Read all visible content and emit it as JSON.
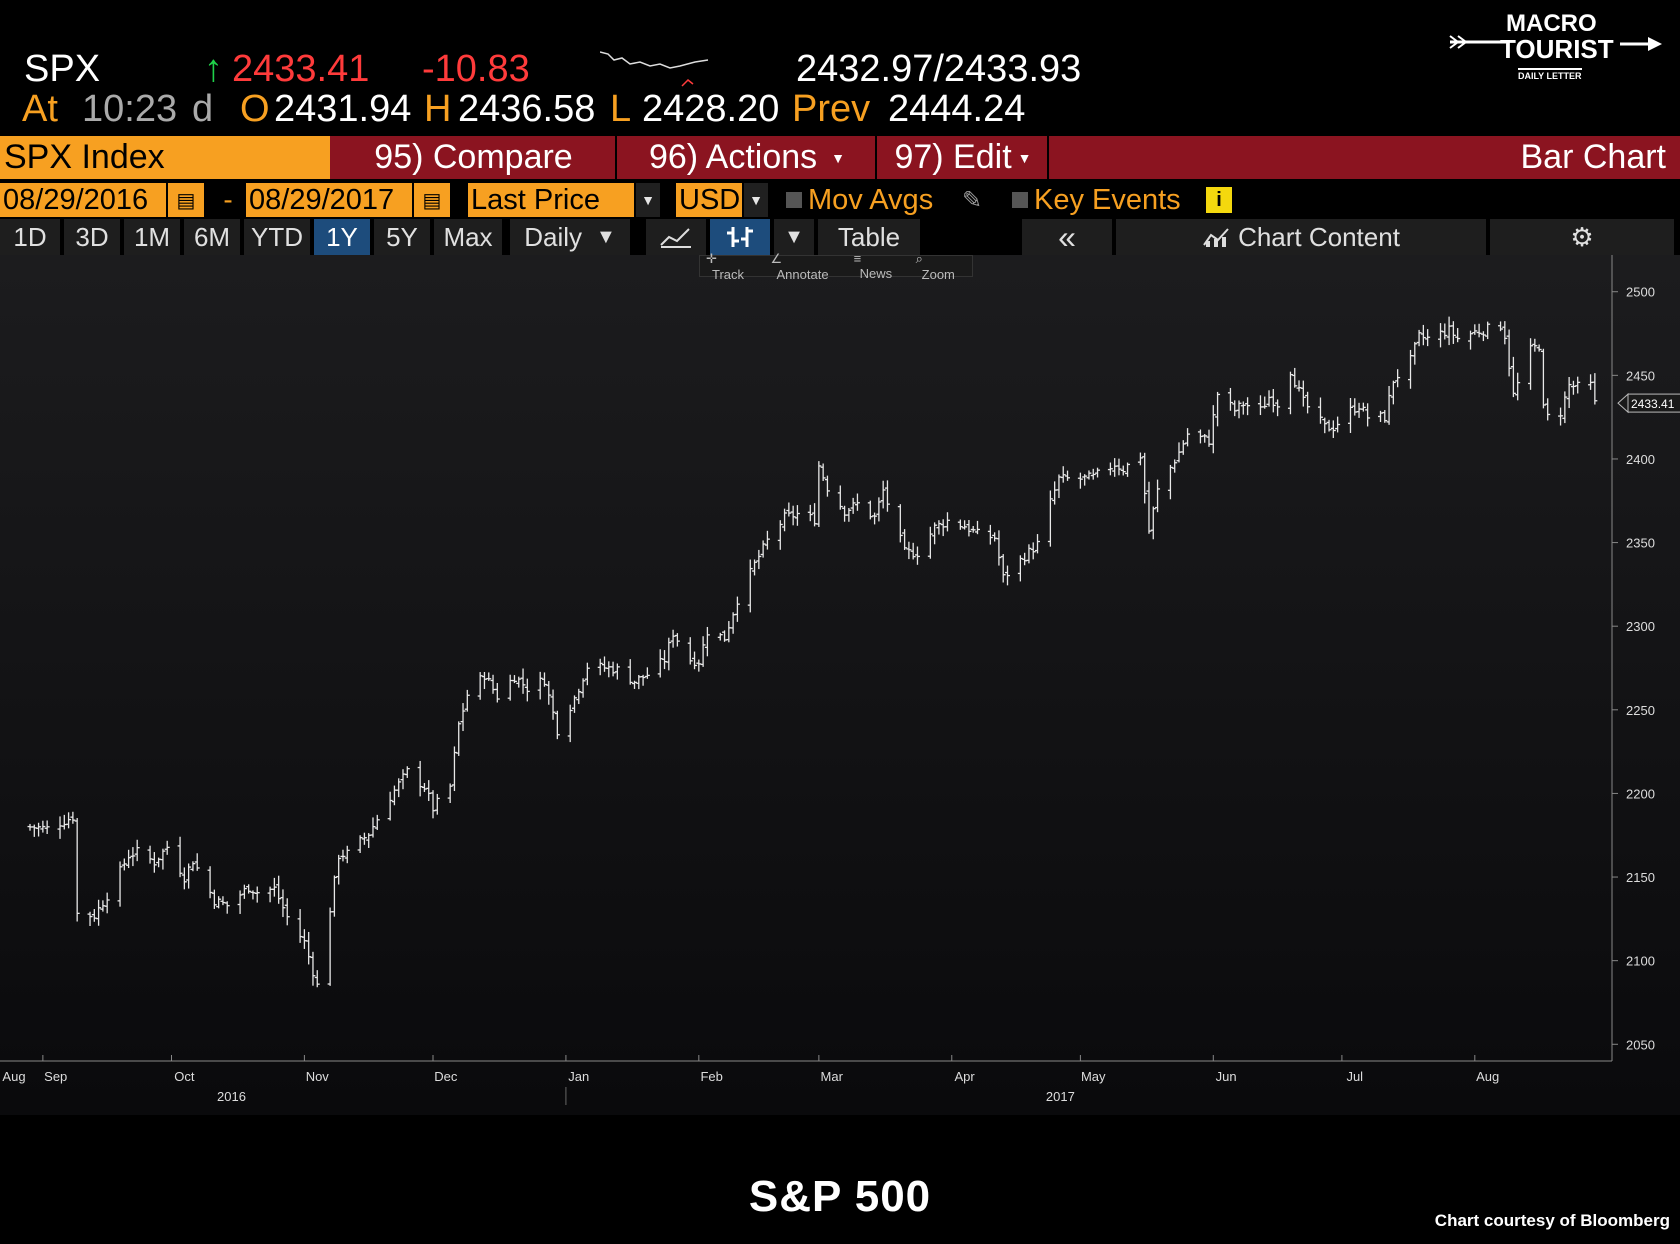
{
  "quote": {
    "ticker": "SPX",
    "up_arrow": "↑",
    "last": "2433.41",
    "change": "-10.83",
    "bid_ask": "2432.97/2433.93",
    "at_label": "At",
    "time": "10:23",
    "time_suffix": "d",
    "open_label": "O",
    "open": "2431.94",
    "high_label": "H",
    "high": "2436.58",
    "low_label": "L",
    "low": "2428.20",
    "prev_label": "Prev",
    "prev": "2444.24"
  },
  "logo": {
    "line1": "MACRO",
    "line2": "TOURIST",
    "line3": "DAILY LETTER"
  },
  "toolbar": {
    "security": "SPX Index",
    "compare": "95) Compare",
    "actions": "96) Actions",
    "edit": "97) Edit",
    "chart_type": "Bar Chart"
  },
  "dates": {
    "start": "08/29/2016",
    "dash": "-",
    "end": "08/29/2017",
    "field": "Last Price",
    "currency": "USD",
    "mov_avgs": "Mov Avgs",
    "key_events": "Key Events",
    "info": "i"
  },
  "periods": [
    "1D",
    "3D",
    "1M",
    "6M",
    "YTD",
    "1Y",
    "5Y",
    "Max"
  ],
  "period_active": "1Y",
  "frequency": "Daily",
  "table_label": "Table",
  "back_label": "«",
  "chart_content_label": "Chart Content",
  "tools": {
    "track": "Track",
    "annotate": "Annotate",
    "news": "News",
    "zoom": "Zoom"
  },
  "caption": "S&P 500",
  "credit": "Chart courtesy of Bloomberg",
  "colors": {
    "up": "#1fd14a",
    "down": "#ff3b3b",
    "orange": "#f7a021",
    "red_bar": "#8b1420",
    "active": "#1d4c7c"
  },
  "chart_data": {
    "type": "bar",
    "y_ticks": [
      2050,
      2100,
      2150,
      2200,
      2250,
      2300,
      2350,
      2400,
      2450,
      2500
    ],
    "ylim": [
      2040,
      2510
    ],
    "x_month_labels": [
      "Aug",
      "Sep",
      "Oct",
      "Nov",
      "Dec",
      "Jan",
      "Feb",
      "Mar",
      "Apr",
      "May",
      "Jun",
      "Jul",
      "Aug"
    ],
    "x_year_labels": [
      "2016",
      "2017"
    ],
    "last_price_label": "2433.41",
    "anchors": [
      [
        "2016-08-29",
        2180
      ],
      [
        "2016-09-02",
        2179
      ],
      [
        "2016-09-08",
        2186
      ],
      [
        "2016-09-09",
        2128
      ],
      [
        "2016-09-13",
        2127
      ],
      [
        "2016-09-16",
        2139
      ],
      [
        "2016-09-21",
        2163
      ],
      [
        "2016-09-23",
        2165
      ],
      [
        "2016-09-27",
        2159
      ],
      [
        "2016-09-30",
        2168
      ],
      [
        "2016-10-04",
        2150
      ],
      [
        "2016-10-06",
        2160
      ],
      [
        "2016-10-11",
        2136
      ],
      [
        "2016-10-14",
        2133
      ],
      [
        "2016-10-19",
        2144
      ],
      [
        "2016-10-21",
        2141
      ],
      [
        "2016-10-25",
        2143
      ],
      [
        "2016-10-28",
        2126
      ],
      [
        "2016-11-01",
        2111
      ],
      [
        "2016-11-04",
        2085
      ],
      [
        "2016-11-07",
        2131
      ],
      [
        "2016-11-09",
        2163
      ],
      [
        "2016-11-11",
        2164
      ],
      [
        "2016-11-16",
        2176
      ],
      [
        "2016-11-21",
        2198
      ],
      [
        "2016-11-25",
        2213
      ],
      [
        "2016-11-29",
        2204
      ],
      [
        "2016-12-01",
        2191
      ],
      [
        "2016-12-05",
        2204
      ],
      [
        "2016-12-07",
        2241
      ],
      [
        "2016-12-09",
        2259
      ],
      [
        "2016-12-13",
        2271
      ],
      [
        "2016-12-16",
        2258
      ],
      [
        "2016-12-20",
        2270
      ],
      [
        "2016-12-23",
        2263
      ],
      [
        "2016-12-27",
        2268
      ],
      [
        "2016-12-30",
        2238
      ],
      [
        "2017-01-03",
        2257
      ],
      [
        "2017-01-06",
        2276
      ],
      [
        "2017-01-11",
        2275
      ],
      [
        "2017-01-13",
        2274
      ],
      [
        "2017-01-17",
        2267
      ],
      [
        "2017-01-20",
        2271
      ],
      [
        "2017-01-24",
        2280
      ],
      [
        "2017-01-26",
        2296
      ],
      [
        "2017-01-30",
        2280
      ],
      [
        "2017-02-01",
        2279
      ],
      [
        "2017-02-03",
        2297
      ],
      [
        "2017-02-07",
        2293
      ],
      [
        "2017-02-10",
        2316
      ],
      [
        "2017-02-14",
        2337
      ],
      [
        "2017-02-17",
        2351
      ],
      [
        "2017-02-21",
        2365
      ],
      [
        "2017-02-24",
        2367
      ],
      [
        "2017-02-28",
        2364
      ],
      [
        "2017-03-01",
        2396
      ],
      [
        "2017-03-03",
        2383
      ],
      [
        "2017-03-07",
        2369
      ],
      [
        "2017-03-10",
        2373
      ],
      [
        "2017-03-14",
        2365
      ],
      [
        "2017-03-16",
        2381
      ],
      [
        "2017-03-21",
        2344
      ],
      [
        "2017-03-24",
        2344
      ],
      [
        "2017-03-28",
        2359
      ],
      [
        "2017-03-31",
        2363
      ],
      [
        "2017-04-04",
        2360
      ],
      [
        "2017-04-07",
        2355
      ],
      [
        "2017-04-11",
        2353
      ],
      [
        "2017-04-13",
        2329
      ],
      [
        "2017-04-18",
        2342
      ],
      [
        "2017-04-21",
        2349
      ],
      [
        "2017-04-24",
        2374
      ],
      [
        "2017-04-26",
        2388
      ],
      [
        "2017-05-01",
        2388
      ],
      [
        "2017-05-04",
        2389
      ],
      [
        "2017-05-09",
        2397
      ],
      [
        "2017-05-11",
        2394
      ],
      [
        "2017-05-15",
        2402
      ],
      [
        "2017-05-17",
        2357
      ],
      [
        "2017-05-19",
        2381
      ],
      [
        "2017-05-24",
        2404
      ],
      [
        "2017-05-26",
        2415
      ],
      [
        "2017-05-31",
        2411
      ],
      [
        "2017-06-02",
        2439
      ],
      [
        "2017-06-06",
        2429
      ],
      [
        "2017-06-08",
        2433
      ],
      [
        "2017-06-12",
        2429
      ],
      [
        "2017-06-14",
        2437
      ],
      [
        "2017-06-16",
        2433
      ],
      [
        "2017-06-19",
        2453
      ],
      [
        "2017-06-22",
        2434
      ],
      [
        "2017-06-27",
        2419
      ],
      [
        "2017-06-29",
        2419
      ],
      [
        "2017-07-03",
        2429
      ],
      [
        "2017-07-05",
        2432
      ],
      [
        "2017-07-07",
        2425
      ],
      [
        "2017-07-11",
        2425
      ],
      [
        "2017-07-13",
        2447
      ],
      [
        "2017-07-17",
        2459
      ],
      [
        "2017-07-19",
        2473
      ],
      [
        "2017-07-21",
        2472
      ],
      [
        "2017-07-26",
        2477
      ],
      [
        "2017-07-28",
        2472
      ],
      [
        "2017-08-01",
        2476
      ],
      [
        "2017-08-03",
        2477
      ],
      [
        "2017-08-07",
        2480
      ],
      [
        "2017-08-08",
        2474
      ],
      [
        "2017-08-10",
        2438
      ],
      [
        "2017-08-14",
        2465
      ],
      [
        "2017-08-16",
        2468
      ],
      [
        "2017-08-17",
        2430
      ],
      [
        "2017-08-18",
        2425
      ],
      [
        "2017-08-21",
        2428
      ],
      [
        "2017-08-23",
        2444
      ],
      [
        "2017-08-25",
        2443
      ],
      [
        "2017-08-28",
        2444
      ],
      [
        "2017-08-29",
        2433
      ]
    ]
  }
}
